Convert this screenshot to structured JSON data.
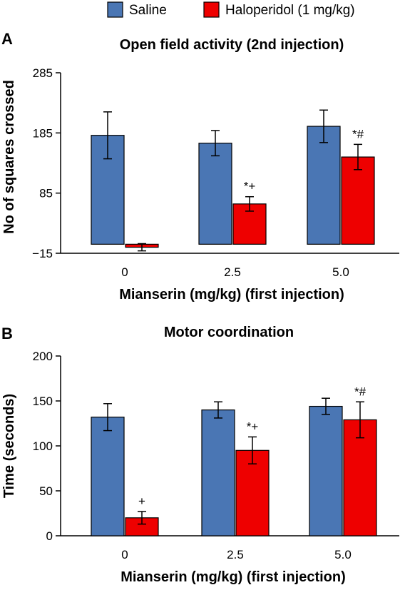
{
  "colors": {
    "saline": "#4a76b4",
    "haloperidol": "#ee0000",
    "outline": "#000000"
  },
  "legend": {
    "saline": "Saline",
    "haloperidol": "Haloperidol (1 mg/kg)"
  },
  "chart_data": [
    {
      "type": "bar",
      "panel": "A",
      "title": "Open field activity (2nd injection)",
      "xlabel": "Mianserin (mg/kg) (first  injection)",
      "ylabel": "No of squares crossed",
      "categories": [
        "0",
        "2.5",
        "5.0"
      ],
      "ylim": [
        -15,
        285
      ],
      "yticks": [
        -15,
        85,
        185,
        285
      ],
      "ytick_labels": [
        "−15",
        "85",
        "185",
        "285"
      ],
      "series": [
        {
          "name": "Saline",
          "values": [
            181,
            168,
            196
          ],
          "errors": [
            39,
            21,
            27
          ]
        },
        {
          "name": "Haloperidol (1 mg/kg)",
          "values": [
            -5,
            67,
            145
          ],
          "errors": [
            6,
            12,
            21
          ]
        }
      ],
      "annotations": [
        {
          "category": 1,
          "series": 1,
          "text": "*+"
        },
        {
          "category": 2,
          "series": 1,
          "text": "*#"
        }
      ]
    },
    {
      "type": "bar",
      "panel": "B",
      "title": "Motor coordination",
      "xlabel": "Mianserin (mg/kg) (first  injection)",
      "ylabel": "Time (seconds)",
      "categories": [
        "0",
        "2.5",
        "5.0"
      ],
      "ylim": [
        0,
        200
      ],
      "yticks": [
        0,
        50,
        100,
        150,
        200
      ],
      "ytick_labels": [
        "0",
        "50",
        "100",
        "150",
        "200"
      ],
      "series": [
        {
          "name": "Saline",
          "values": [
            132,
            140,
            144
          ],
          "errors": [
            15,
            9,
            9
          ]
        },
        {
          "name": "Haloperidol (1 mg/kg)",
          "values": [
            20,
            95,
            129
          ],
          "errors": [
            7,
            15,
            20
          ]
        }
      ],
      "annotations": [
        {
          "category": 0,
          "series": 1,
          "text": "+"
        },
        {
          "category": 1,
          "series": 1,
          "text": "*+"
        },
        {
          "category": 2,
          "series": 1,
          "text": "*#"
        }
      ]
    }
  ]
}
